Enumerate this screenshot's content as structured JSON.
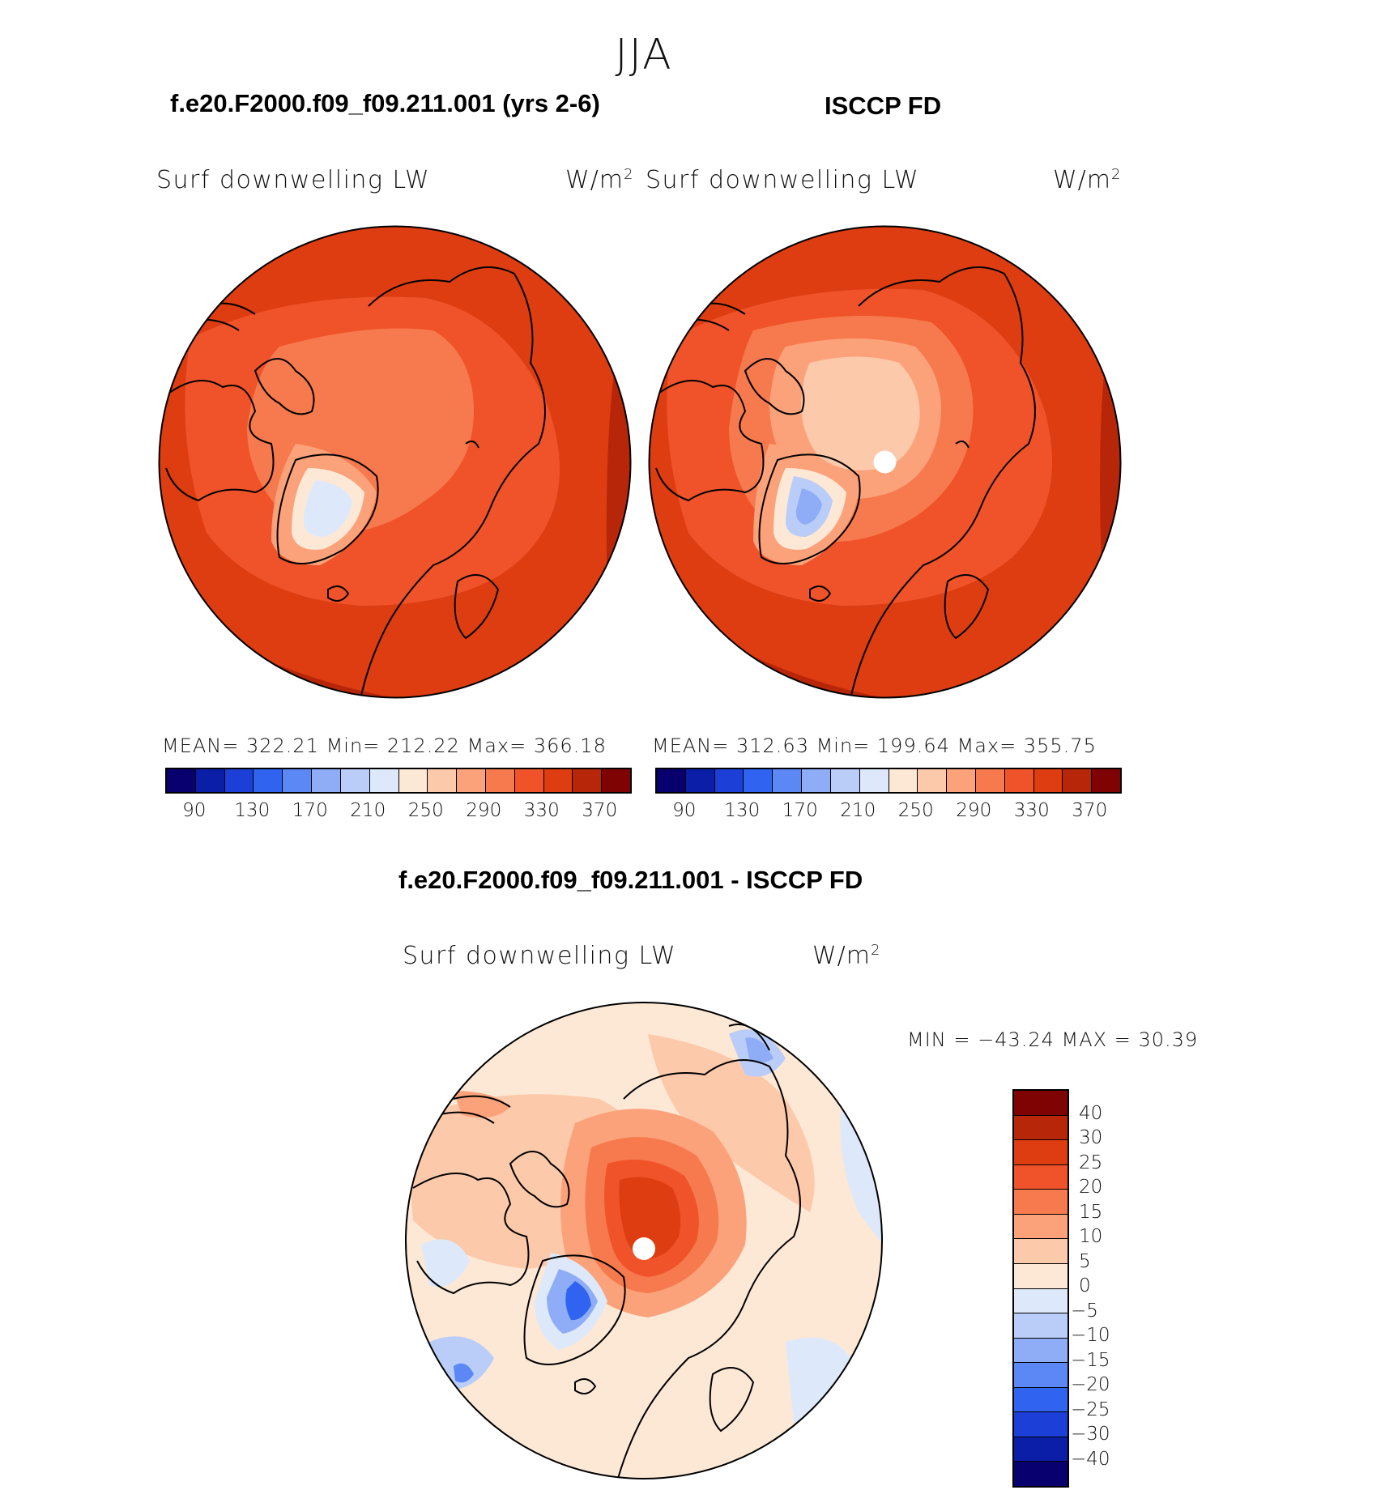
{
  "season": "JJA",
  "panels": [
    {
      "case_title": "f.e20.F2000.f09_f09.211.001 (yrs 2-6)",
      "variable": "Surf downwelling LW",
      "units": "W/m",
      "units_sup": "2",
      "stats": "MEAN=  322.21   Min=  212.22   Max=  366.18",
      "colorbar_ticks": [
        "90",
        "130",
        "170",
        "210",
        "250",
        "290",
        "330",
        "370"
      ]
    },
    {
      "case_title": "ISCCP FD",
      "variable": "Surf downwelling LW",
      "units": "W/m",
      "units_sup": "2",
      "stats": "MEAN=  312.63   Min=  199.64   Max=  355.75",
      "colorbar_ticks": [
        "90",
        "130",
        "170",
        "210",
        "250",
        "290",
        "330",
        "370"
      ]
    }
  ],
  "diff": {
    "title": "f.e20.F2000.f09_f09.211.001 - ISCCP FD",
    "variable": "Surf downwelling LW",
    "units": "W/m",
    "units_sup": "2",
    "minmax": "MIN  =  −43.24  MAX  =    30.39",
    "colorbar_ticks": [
      "40",
      "30",
      "25",
      "20",
      "15",
      "10",
      "5",
      "0",
      "−5",
      "−10",
      "−15",
      "−20",
      "−25",
      "−30",
      "−40"
    ]
  },
  "colors": {
    "abs_scale": [
      "#08006e",
      "#0b1ea8",
      "#1c3fd8",
      "#2f63f0",
      "#5c88f5",
      "#8fadf7",
      "#b9cdf8",
      "#dde9fb",
      "#fde8d6",
      "#fcc9aa",
      "#fca27b",
      "#f67a4d",
      "#f0532a",
      "#de3d11",
      "#b72609",
      "#800303"
    ],
    "diff_scale": [
      "#800303",
      "#b72609",
      "#de3d11",
      "#f0532a",
      "#f67a4d",
      "#fca27b",
      "#fcc9aa",
      "#fde8d6",
      "#dde9fb",
      "#b9cdf8",
      "#8fadf7",
      "#5c88f5",
      "#2f63f0",
      "#1c3fd8",
      "#0b1ea8",
      "#08006e"
    ]
  }
}
